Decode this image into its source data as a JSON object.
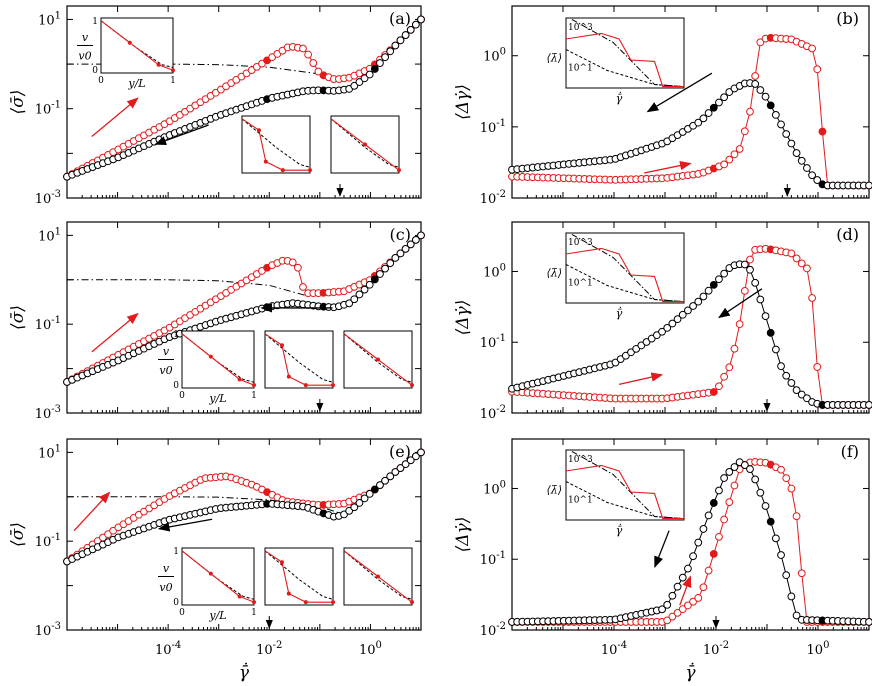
{
  "chart_data": [
    {
      "id": "a",
      "type": "scatter",
      "panel_label": "(a)",
      "ylabel": "⟨σ̄⟩",
      "xlabel": "",
      "xscale": "log",
      "yscale": "log",
      "xlim": [
        1e-06,
        10
      ],
      "ylim": [
        0.001,
        20
      ],
      "x_ticks": [
        "10-4",
        "10-2",
        "100"
      ],
      "x_tick_values": [
        0.0001,
        0.01,
        1
      ],
      "y_ticks": [
        "10-3",
        "10-1",
        "101"
      ],
      "y_tick_values": [
        0.001,
        0.1,
        10
      ],
      "arrow_marker_x": 0.25,
      "series": [
        {
          "name": "up",
          "color": "#e31a1c",
          "marker": "circle-open",
          "x": [
            1e-06,
            1e-05,
            0.0001,
            0.001,
            0.01,
            0.025,
            0.05,
            0.1,
            0.2,
            0.4,
            1,
            3,
            10
          ],
          "y": [
            0.003,
            0.012,
            0.05,
            0.25,
            1.3,
            2.5,
            2.2,
            0.6,
            0.45,
            0.5,
            0.8,
            2.5,
            10
          ]
        },
        {
          "name": "down",
          "color": "#000000",
          "marker": "circle-open",
          "x": [
            1e-06,
            1e-05,
            0.0001,
            0.001,
            0.01,
            0.05,
            0.1,
            0.2,
            0.4,
            1,
            3,
            10
          ],
          "y": [
            0.003,
            0.008,
            0.025,
            0.07,
            0.17,
            0.25,
            0.26,
            0.25,
            0.28,
            0.6,
            2.5,
            10
          ]
        },
        {
          "name": "reference",
          "color": "#000000",
          "style": "dash-dot",
          "x": [
            1e-06,
            0.0001,
            0.001,
            0.01,
            0.1,
            0.25
          ],
          "y": [
            1.0,
            1.0,
            0.97,
            0.85,
            0.6,
            0.45
          ]
        }
      ]
    },
    {
      "id": "b",
      "type": "scatter",
      "panel_label": "(b)",
      "ylabel": "⟨Δγ̇⟩",
      "xlabel": "",
      "xscale": "log",
      "yscale": "log",
      "xlim": [
        1e-06,
        10
      ],
      "ylim": [
        0.01,
        5
      ],
      "x_ticks": [
        "10-4",
        "10-2",
        "100"
      ],
      "x_tick_values": [
        0.0001,
        0.01,
        1
      ],
      "y_ticks": [
        "10-2",
        "10-1",
        "100"
      ],
      "y_tick_values": [
        0.01,
        0.1,
        1
      ],
      "arrow_marker_x": 0.25,
      "series": [
        {
          "name": "up",
          "color": "#e31a1c",
          "marker": "circle-open",
          "x": [
            1e-06,
            0.0001,
            0.001,
            0.005,
            0.015,
            0.03,
            0.05,
            0.07,
            0.1,
            0.3,
            0.9,
            1.2,
            1.5,
            10
          ],
          "y": [
            0.02,
            0.018,
            0.019,
            0.022,
            0.03,
            0.05,
            0.2,
            1.5,
            1.8,
            1.7,
            1.2,
            0.1,
            0.015,
            0.015
          ]
        },
        {
          "name": "down",
          "color": "#000000",
          "marker": "circle-open",
          "x": [
            1e-06,
            0.0001,
            0.001,
            0.005,
            0.01,
            0.02,
            0.04,
            0.06,
            0.1,
            0.2,
            0.4,
            0.8,
            1.3,
            10
          ],
          "y": [
            0.025,
            0.035,
            0.06,
            0.12,
            0.2,
            0.33,
            0.42,
            0.4,
            0.25,
            0.1,
            0.04,
            0.02,
            0.015,
            0.015
          ]
        }
      ]
    },
    {
      "id": "c",
      "type": "scatter",
      "panel_label": "(c)",
      "ylabel": "⟨σ̄⟩",
      "xlabel": "",
      "xscale": "log",
      "yscale": "log",
      "xlim": [
        1e-06,
        10
      ],
      "ylim": [
        0.001,
        20
      ],
      "x_ticks": [
        "10-4",
        "10-2",
        "100"
      ],
      "x_tick_values": [
        0.0001,
        0.01,
        1
      ],
      "y_ticks": [
        "10-3",
        "10-1",
        "101"
      ],
      "y_tick_values": [
        0.001,
        0.1,
        10
      ],
      "arrow_marker_x": 0.1,
      "series": [
        {
          "name": "up",
          "color": "#e31a1c",
          "marker": "circle-open",
          "x": [
            1e-06,
            1e-05,
            0.0001,
            0.001,
            0.01,
            0.02,
            0.035,
            0.05,
            0.1,
            0.3,
            1,
            3,
            10
          ],
          "y": [
            0.005,
            0.02,
            0.08,
            0.4,
            2.0,
            2.8,
            2.3,
            0.5,
            0.5,
            0.55,
            1.0,
            3.0,
            10
          ]
        },
        {
          "name": "down",
          "color": "#000000",
          "marker": "circle-open",
          "x": [
            1e-06,
            1e-05,
            0.0001,
            0.001,
            0.01,
            0.03,
            0.1,
            0.2,
            0.4,
            1,
            3,
            10
          ],
          "y": [
            0.005,
            0.015,
            0.05,
            0.12,
            0.25,
            0.3,
            0.25,
            0.24,
            0.3,
            0.8,
            3.0,
            10
          ]
        },
        {
          "name": "reference",
          "color": "#000000",
          "style": "dash-dot",
          "x": [
            1e-06,
            0.0001,
            0.001,
            0.01,
            0.05
          ],
          "y": [
            1.0,
            1.0,
            0.95,
            0.75,
            0.45
          ]
        }
      ]
    },
    {
      "id": "d",
      "type": "scatter",
      "panel_label": "(d)",
      "ylabel": "⟨Δγ̇⟩",
      "xlabel": "",
      "xscale": "log",
      "yscale": "log",
      "xlim": [
        1e-06,
        10
      ],
      "ylim": [
        0.01,
        5
      ],
      "x_ticks": [
        "10-4",
        "10-2",
        "100"
      ],
      "x_tick_values": [
        0.0001,
        0.01,
        1
      ],
      "y_ticks": [
        "10-2",
        "10-1",
        "100"
      ],
      "y_tick_values": [
        0.01,
        0.1,
        1
      ],
      "arrow_marker_x": 0.1,
      "series": [
        {
          "name": "up",
          "color": "#e31a1c",
          "marker": "circle-open",
          "x": [
            1e-06,
            0.0001,
            0.001,
            0.01,
            0.02,
            0.03,
            0.04,
            0.05,
            0.1,
            0.3,
            0.7,
            1.1,
            10
          ],
          "y": [
            0.02,
            0.016,
            0.016,
            0.02,
            0.05,
            0.2,
            0.8,
            2.0,
            2.1,
            1.8,
            1.0,
            0.013,
            0.013
          ]
        },
        {
          "name": "down",
          "color": "#000000",
          "marker": "circle-open",
          "x": [
            1e-06,
            0.0001,
            0.001,
            0.005,
            0.01,
            0.02,
            0.035,
            0.05,
            0.1,
            0.2,
            0.4,
            0.8,
            1.2,
            10
          ],
          "y": [
            0.022,
            0.05,
            0.15,
            0.4,
            0.7,
            1.2,
            1.3,
            1.0,
            0.2,
            0.04,
            0.02,
            0.014,
            0.013,
            0.013
          ]
        }
      ]
    },
    {
      "id": "e",
      "type": "scatter",
      "panel_label": "(e)",
      "ylabel": "⟨σ̄⟩",
      "xlabel": "γ̄̇",
      "xscale": "log",
      "yscale": "log",
      "xlim": [
        1e-06,
        10
      ],
      "ylim": [
        0.001,
        20
      ],
      "x_ticks": [
        "10-4",
        "10-2",
        "100"
      ],
      "x_tick_values": [
        0.0001,
        0.01,
        1
      ],
      "y_ticks": [
        "10-3",
        "10-1",
        "101"
      ],
      "y_tick_values": [
        0.001,
        0.1,
        10
      ],
      "arrow_marker_x": 0.01,
      "series": [
        {
          "name": "up",
          "color": "#e31a1c",
          "marker": "circle-open",
          "x": [
            1e-06,
            1e-05,
            0.0001,
            0.0005,
            0.0015,
            0.005,
            0.02,
            0.05,
            0.1,
            0.3,
            1,
            3,
            10
          ],
          "y": [
            0.035,
            0.2,
            1.0,
            2.6,
            2.9,
            1.8,
            0.8,
            0.7,
            0.65,
            0.7,
            1.2,
            3.5,
            10
          ]
        },
        {
          "name": "down",
          "color": "#000000",
          "marker": "circle-open",
          "x": [
            1e-06,
            1e-05,
            0.0001,
            0.001,
            0.01,
            0.05,
            0.1,
            0.2,
            0.3,
            0.5,
            1,
            3,
            10
          ],
          "y": [
            0.035,
            0.12,
            0.3,
            0.55,
            0.7,
            0.6,
            0.45,
            0.35,
            0.4,
            0.6,
            1.2,
            3.5,
            10
          ]
        },
        {
          "name": "reference",
          "color": "#000000",
          "style": "dash-dot",
          "x": [
            1e-06,
            0.0001,
            0.001,
            0.01,
            0.1,
            0.3
          ],
          "y": [
            1.0,
            1.0,
            0.98,
            0.85,
            0.6,
            0.4
          ]
        }
      ]
    },
    {
      "id": "f",
      "type": "scatter",
      "panel_label": "(f)",
      "ylabel": "⟨Δγ̇⟩",
      "xlabel": "γ̄̇",
      "xscale": "log",
      "yscale": "log",
      "xlim": [
        1e-06,
        10
      ],
      "ylim": [
        0.01,
        5
      ],
      "x_ticks": [
        "10-4",
        "10-2",
        "100"
      ],
      "x_tick_values": [
        0.0001,
        0.01,
        1
      ],
      "y_ticks": [
        "10-2",
        "10-1",
        "100"
      ],
      "y_tick_values": [
        0.01,
        0.1,
        1
      ],
      "arrow_marker_x": 0.01,
      "series": [
        {
          "name": "up",
          "color": "#e31a1c",
          "marker": "circle-open",
          "x": [
            1e-06,
            0.001,
            0.005,
            0.01,
            0.02,
            0.03,
            0.05,
            0.1,
            0.2,
            0.35,
            0.45,
            0.6,
            10
          ],
          "y": [
            0.013,
            0.013,
            0.03,
            0.15,
            0.8,
            2.0,
            2.4,
            2.3,
            1.8,
            0.8,
            0.1,
            0.013,
            0.013
          ]
        },
        {
          "name": "down",
          "color": "#000000",
          "marker": "circle-open",
          "x": [
            1e-06,
            0.0001,
            0.001,
            0.003,
            0.007,
            0.015,
            0.03,
            0.05,
            0.1,
            0.2,
            0.3,
            0.4,
            10
          ],
          "y": [
            0.013,
            0.014,
            0.02,
            0.08,
            0.4,
            1.5,
            2.4,
            1.8,
            0.5,
            0.1,
            0.03,
            0.014,
            0.013
          ]
        }
      ]
    }
  ],
  "inset_labels": {
    "v_over_v0_num": "v",
    "v_over_v0_den": "v0",
    "y_over_L": "y/L",
    "zero": "0",
    "one": "1",
    "lambda_avg": "⟨λ̄⟩",
    "lambda_tick_high": "10^3",
    "lambda_tick_low": "10^1",
    "gamma_bar_dot": "γ̄̇"
  }
}
